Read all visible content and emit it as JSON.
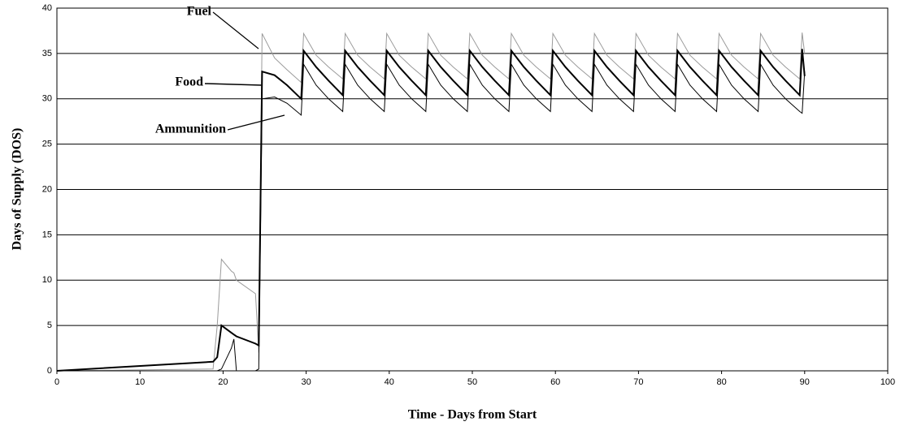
{
  "chart_data": {
    "type": "line",
    "xlabel": "Time - Days from Start",
    "ylabel": "Days of Supply (DOS)",
    "x": [
      0,
      18.8,
      19.3,
      19.8,
      21,
      21.3,
      21.6,
      23.9,
      24.3,
      24.7,
      26.2,
      27.7,
      29.4,
      29.7,
      31.2,
      32.7,
      34.4,
      34.7,
      36.2,
      37.7,
      39.4,
      39.7,
      41.2,
      42.7,
      44.4,
      44.7,
      46.2,
      47.7,
      49.4,
      49.7,
      51.2,
      52.7,
      54.4,
      54.7,
      56.2,
      57.7,
      59.4,
      59.7,
      61.2,
      62.7,
      64.4,
      64.7,
      66.2,
      67.7,
      69.4,
      69.7,
      71.2,
      72.7,
      74.4,
      74.7,
      76.2,
      77.7,
      79.4,
      79.7,
      81.2,
      82.7,
      84.4,
      84.7,
      86.2,
      87.7,
      89.4,
      89.7,
      90
    ],
    "series": [
      {
        "name": "Fuel",
        "color": "#9a9a9a",
        "width": 1,
        "values": [
          0,
          0.2,
          5,
          12.3,
          11,
          10.8,
          10,
          8.5,
          2,
          37.2,
          34.5,
          33.2,
          31.8,
          37.2,
          34.8,
          33.5,
          32.2,
          37.2,
          34.8,
          33.5,
          32.2,
          37.2,
          34.8,
          33.5,
          32.2,
          37.2,
          34.8,
          33.5,
          32.2,
          37.2,
          34.8,
          33.5,
          32.2,
          37.2,
          34.8,
          33.5,
          32.2,
          37.2,
          34.8,
          33.5,
          32.2,
          37.2,
          34.8,
          33.5,
          32.2,
          37.2,
          34.8,
          33.5,
          32.2,
          37.2,
          34.8,
          33.5,
          32.2,
          37.2,
          34.8,
          33.5,
          32.2,
          37.2,
          34.8,
          33.5,
          32.2,
          37.3,
          35
        ]
      },
      {
        "name": "Food",
        "color": "#000000",
        "width": 2,
        "values": [
          0,
          1,
          1.5,
          5,
          4.2,
          4,
          3.8,
          3,
          2.8,
          33,
          32.6,
          31.5,
          30,
          35.3,
          33.5,
          32,
          30.4,
          35.3,
          33.5,
          32,
          30.4,
          35.3,
          33.5,
          32,
          30.4,
          35.3,
          33.5,
          32,
          30.4,
          35.3,
          33.5,
          32,
          30.4,
          35.3,
          33.5,
          32,
          30.4,
          35.3,
          33.5,
          32,
          30.4,
          35.3,
          33.5,
          32,
          30.4,
          35.3,
          33.5,
          32,
          30.4,
          35.3,
          33.5,
          32,
          30.4,
          35.3,
          33.5,
          32,
          30.4,
          35.3,
          33.5,
          32,
          30.4,
          35.5,
          32.5
        ]
      },
      {
        "name": "Ammunition",
        "color": "#000000",
        "width": 1,
        "values": [
          0,
          0,
          0,
          0.2,
          2.5,
          3.5,
          0,
          0,
          0.2,
          30,
          30.2,
          29.5,
          28.2,
          33.8,
          31.5,
          30,
          28.6,
          33.8,
          31.5,
          30,
          28.6,
          33.8,
          31.5,
          30,
          28.6,
          33.8,
          31.5,
          30,
          28.6,
          33.8,
          31.5,
          30,
          28.6,
          33.8,
          31.5,
          30,
          28.6,
          33.8,
          31.5,
          30,
          28.6,
          33.8,
          31.5,
          30,
          28.6,
          33.8,
          31.5,
          30,
          28.6,
          33.8,
          31.5,
          30,
          28.6,
          33.8,
          31.5,
          30,
          28.6,
          33.8,
          31.5,
          30,
          28.6,
          28.4,
          33
        ]
      }
    ],
    "xlim": [
      0,
      100
    ],
    "xticks": [
      0,
      10,
      20,
      30,
      40,
      50,
      60,
      70,
      80,
      90,
      100
    ],
    "ylim": [
      0,
      40
    ],
    "yticks": [
      0,
      5,
      10,
      15,
      20,
      25,
      30,
      35,
      40
    ],
    "grid": true
  }
}
